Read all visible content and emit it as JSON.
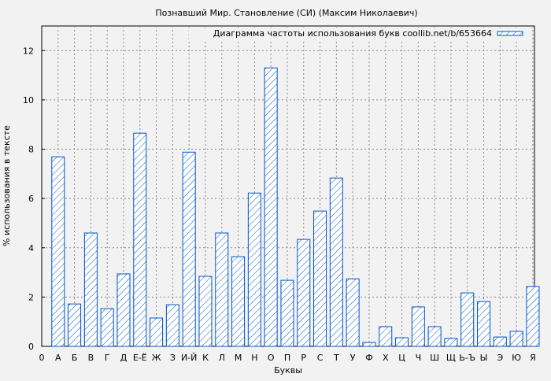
{
  "chart_data": {
    "type": "bar",
    "title": "Познавший Мир. Становление (СИ) (Максим Николаевич)",
    "xlabel": "Буквы",
    "ylabel": "% использования в тексте",
    "ylim": [
      0,
      13
    ],
    "yticks": [
      0,
      2,
      4,
      6,
      8,
      10,
      12
    ],
    "x_origin_label": "0",
    "grid": true,
    "legend_position": "top-right",
    "bar_color": "#0055cc",
    "bar_fill": "hatched",
    "series": [
      {
        "name": "Диаграмма частоты использования букв coollib.net/b/653664",
        "values": [
          7.69,
          1.72,
          4.6,
          1.53,
          2.94,
          8.65,
          1.15,
          1.69,
          7.88,
          2.84,
          4.6,
          3.64,
          6.22,
          11.3,
          2.68,
          4.34,
          5.49,
          6.83,
          2.74,
          0.16,
          0.8,
          0.35,
          1.6,
          0.8,
          0.32,
          2.17,
          1.82,
          0.38,
          0.61,
          2.43
        ]
      }
    ],
    "categories": [
      "А",
      "Б",
      "В",
      "Г",
      "Д",
      "Е-Ё",
      "Ж",
      "З",
      "И-Й",
      "К",
      "Л",
      "М",
      "Н",
      "О",
      "П",
      "Р",
      "С",
      "Т",
      "У",
      "Ф",
      "Х",
      "Ц",
      "Ч",
      "Ш",
      "Щ",
      "Ь-Ъ",
      "Ы",
      "Э",
      "Ю",
      "Я"
    ]
  }
}
